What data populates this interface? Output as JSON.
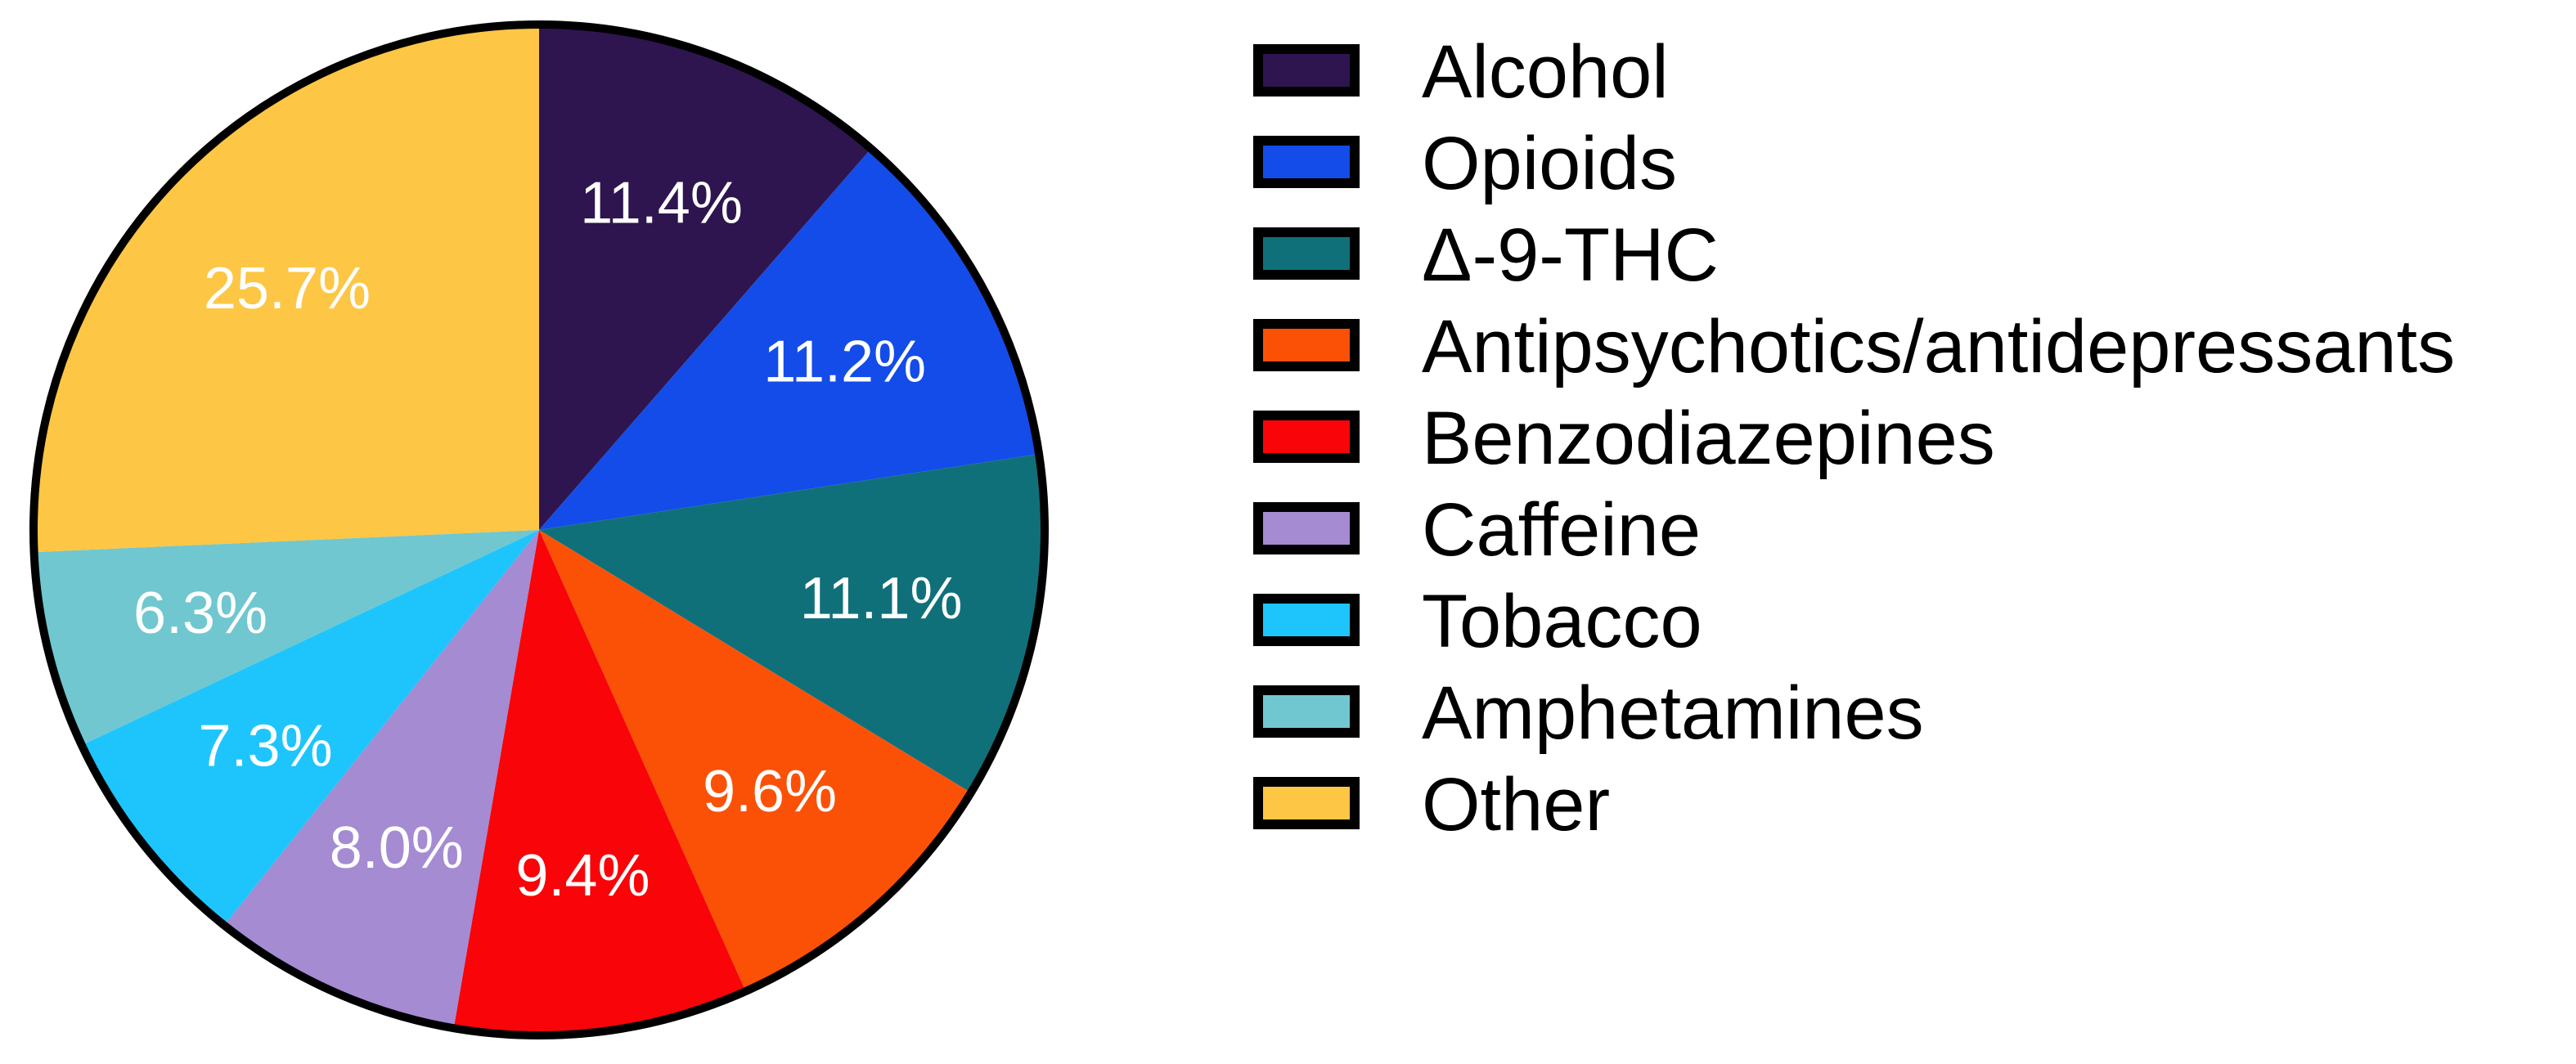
{
  "chart_data": {
    "type": "pie",
    "start": "12 o'clock",
    "direction": "clockwise",
    "legend_position": "right",
    "slice_labels_inside": true,
    "categories": [
      "Alcohol",
      "Opioids",
      "Δ-9-THC",
      "Antipsychotics/antidepressants",
      "Benzodiazepines",
      "Caffeine",
      "Tobacco",
      "Amphetamines",
      "Other"
    ],
    "values": [
      11.4,
      11.2,
      11.1,
      9.6,
      9.4,
      8.0,
      7.3,
      6.3,
      25.7
    ],
    "labels": [
      "11.4%",
      "11.2%",
      "11.1%",
      "9.6%",
      "9.4%",
      "8.0%",
      "7.3%",
      "6.3%",
      "25.7%"
    ],
    "colors": [
      "#2e1550",
      "#134ce8",
      "#10707a",
      "#fb5107",
      "#f90409",
      "#a48bd2",
      "#1ec5fc",
      "#70c7d0",
      "#fdc644"
    ]
  }
}
